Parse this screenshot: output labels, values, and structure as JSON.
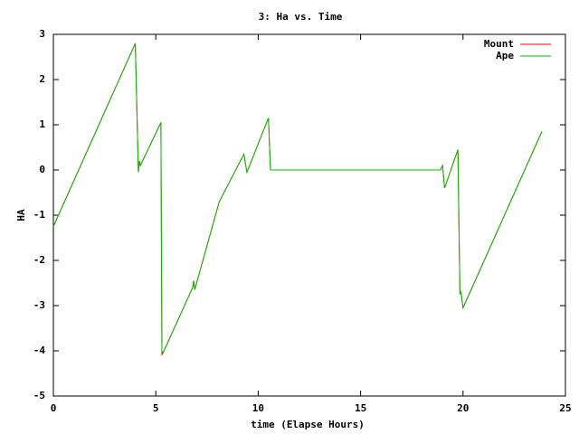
{
  "chart_data": {
    "type": "line",
    "title": "3: Ha vs. Time",
    "x_label": "time (Elapse Hours)",
    "y_label": "HA",
    "x": [
      0,
      4.0,
      4.15,
      4.2,
      4.25,
      5.25,
      5.3,
      5.35,
      6.8,
      6.85,
      6.9,
      8.1,
      9.3,
      9.45,
      10.5,
      10.6,
      18.9,
      19.0,
      19.1,
      19.75,
      19.85,
      19.9,
      20.0,
      23.85
    ],
    "series": [
      {
        "name": "Mount",
        "color": "#ff0000",
        "values": [
          -1.25,
          2.8,
          -0.05,
          0.2,
          0.1,
          1.05,
          -4.08,
          -4.05,
          -2.6,
          -2.45,
          -2.65,
          -0.7,
          0.35,
          -0.05,
          1.15,
          0.0,
          0.0,
          0.1,
          -0.4,
          0.45,
          -2.75,
          -2.7,
          -3.05,
          0.85
        ]
      },
      {
        "name": "Ape",
        "color": "#00c000",
        "values": [
          -1.25,
          2.8,
          -0.05,
          0.2,
          0.1,
          1.05,
          -4.0,
          -4.05,
          -2.6,
          -2.45,
          -2.65,
          -0.7,
          0.35,
          -0.05,
          1.15,
          0.0,
          0.0,
          0.1,
          -0.4,
          0.45,
          -2.75,
          -2.7,
          -3.05,
          0.85
        ]
      }
    ],
    "xlim": [
      0,
      25
    ],
    "xticks": [
      0,
      5,
      10,
      15,
      20,
      25
    ],
    "ylim": [
      -5,
      3
    ],
    "yticks": [
      -5,
      -4,
      -3,
      -2,
      -1,
      0,
      1,
      2,
      3
    ],
    "legend": "top-right"
  }
}
